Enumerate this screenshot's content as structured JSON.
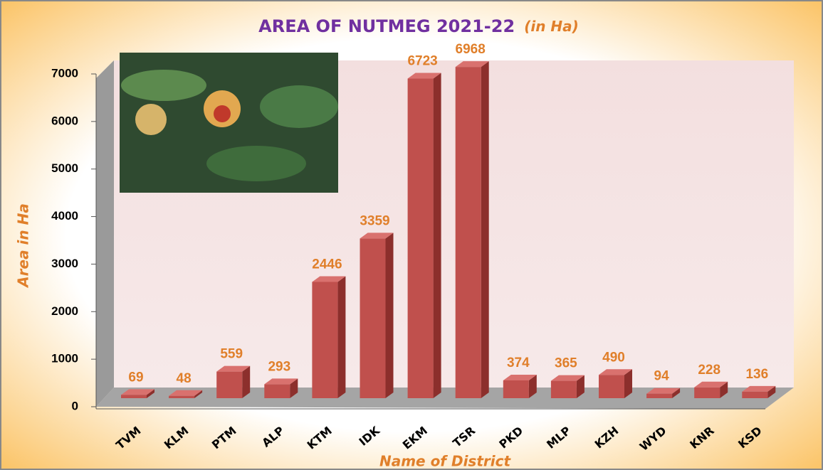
{
  "chart_data": {
    "type": "bar3d",
    "title": "AREA OF NUTMEG 2021-22",
    "title_unit": "(in Ha)",
    "y_label": "Area in Ha",
    "x_label": "Name of District",
    "categories": [
      "TVM",
      "KLM",
      "PTM",
      "ALP",
      "KTM",
      "IDK",
      "EKM",
      "TSR",
      "PKD",
      "MLP",
      "KZH",
      "WYD",
      "KNR",
      "KSD"
    ],
    "values": [
      69,
      48,
      559,
      293,
      2446,
      3359,
      6723,
      6968,
      374,
      365,
      490,
      94,
      228,
      136
    ],
    "color": "#c0504d",
    "ylim": [
      0,
      7000
    ],
    "yticks": [
      0,
      1000,
      2000,
      3000,
      4000,
      5000,
      6000,
      7000
    ]
  }
}
